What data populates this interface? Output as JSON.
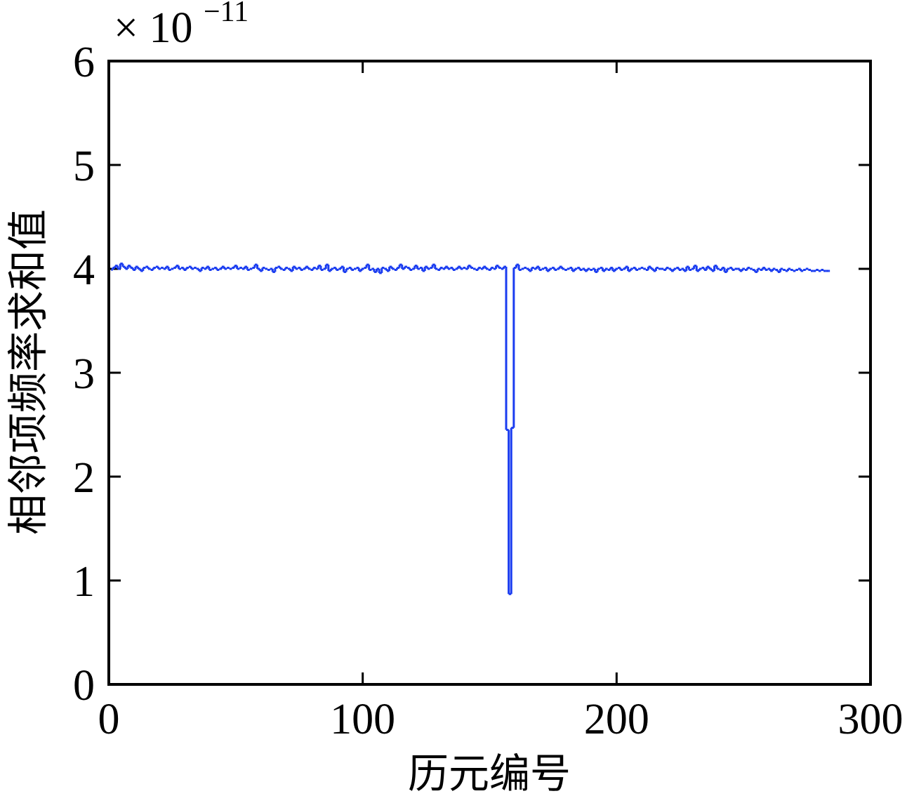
{
  "chart_data": {
    "type": "line",
    "step": true,
    "xlabel": "历元编号",
    "ylabel": "相邻项频率求和值",
    "y_multiplier": {
      "base": "× 10",
      "exponent": "−11"
    },
    "xlim": [
      0,
      300
    ],
    "xticks": [
      0,
      100,
      200,
      300
    ],
    "ylim": [
      0,
      6
    ],
    "yticks": [
      0,
      1,
      2,
      3,
      4,
      5,
      6
    ],
    "grid": false,
    "series": [
      {
        "color": "#1a3cf0",
        "x": [
          1,
          2,
          3,
          4,
          5,
          6,
          7,
          8,
          9,
          10,
          11,
          12,
          13,
          14,
          15,
          16,
          17,
          18,
          19,
          20,
          21,
          22,
          23,
          24,
          25,
          26,
          27,
          28,
          29,
          30,
          31,
          32,
          33,
          34,
          35,
          36,
          37,
          38,
          39,
          40,
          41,
          42,
          43,
          44,
          45,
          46,
          47,
          48,
          49,
          50,
          51,
          52,
          53,
          54,
          55,
          56,
          57,
          58,
          59,
          60,
          61,
          62,
          63,
          64,
          65,
          66,
          67,
          68,
          69,
          70,
          71,
          72,
          73,
          74,
          75,
          76,
          77,
          78,
          79,
          80,
          81,
          82,
          83,
          84,
          85,
          86,
          87,
          88,
          89,
          90,
          91,
          92,
          93,
          94,
          95,
          96,
          97,
          98,
          99,
          100,
          101,
          102,
          103,
          104,
          105,
          106,
          107,
          108,
          109,
          110,
          111,
          112,
          113,
          114,
          115,
          116,
          117,
          118,
          119,
          120,
          121,
          122,
          123,
          124,
          125,
          126,
          127,
          128,
          129,
          130,
          131,
          132,
          133,
          134,
          135,
          136,
          137,
          138,
          139,
          140,
          141,
          142,
          143,
          144,
          145,
          146,
          147,
          148,
          149,
          150,
          151,
          152,
          153,
          154,
          155,
          156,
          157,
          158,
          159,
          160,
          161,
          162,
          163,
          164,
          165,
          166,
          167,
          168,
          169,
          170,
          171,
          172,
          173,
          174,
          175,
          176,
          177,
          178,
          179,
          180,
          181,
          182,
          183,
          184,
          185,
          186,
          187,
          188,
          189,
          190,
          191,
          192,
          193,
          194,
          195,
          196,
          197,
          198,
          199,
          200,
          201,
          202,
          203,
          204,
          205,
          206,
          207,
          208,
          209,
          210,
          211,
          212,
          213,
          214,
          215,
          216,
          217,
          218,
          219,
          220,
          221,
          222,
          223,
          224,
          225,
          226,
          227,
          228,
          229,
          230,
          231,
          232,
          233,
          234,
          235,
          236,
          237,
          238,
          239,
          240,
          241,
          242,
          243,
          244,
          245,
          246,
          247,
          248,
          249,
          250,
          251,
          252,
          253,
          254,
          255,
          256,
          257,
          258,
          259,
          260,
          261,
          262,
          263,
          264,
          265,
          266,
          267,
          268,
          269,
          270,
          271,
          272,
          273,
          274,
          275,
          276,
          277,
          278,
          279,
          280,
          281,
          282,
          283,
          284
        ],
        "values": [
          3.99,
          4.01,
          4.03,
          4.0,
          4.05,
          4.02,
          4.0,
          4.03,
          4.01,
          3.99,
          4.02,
          4.0,
          3.98,
          4.01,
          4.02,
          4.0,
          3.99,
          4.01,
          4.02,
          4.0,
          4.01,
          4.0,
          4.02,
          3.99,
          4.0,
          4.01,
          4.03,
          4.0,
          4.01,
          3.99,
          4.01,
          4.02,
          4.0,
          4.01,
          4.0,
          3.98,
          4.01,
          4.0,
          4.02,
          3.99,
          4.0,
          4.01,
          3.99,
          4.0,
          4.02,
          4.0,
          4.01,
          4.0,
          4.01,
          4.03,
          4.0,
          4.01,
          4.0,
          4.02,
          3.99,
          4.0,
          4.01,
          4.04,
          4.0,
          3.98,
          4.01,
          4.0,
          3.99,
          4.0,
          3.97,
          4.01,
          4.02,
          4.0,
          3.99,
          4.01,
          4.0,
          3.98,
          4.02,
          4.0,
          4.01,
          3.99,
          4.0,
          4.02,
          4.0,
          3.99,
          4.01,
          4.0,
          4.03,
          3.99,
          4.0,
          4.04,
          3.98,
          4.0,
          4.01,
          3.99,
          4.0,
          4.02,
          3.97,
          4.0,
          4.01,
          3.99,
          4.0,
          4.01,
          3.98,
          4.0,
          4.01,
          4.04,
          3.99,
          4.0,
          3.97,
          4.0,
          3.96,
          4.01,
          4.0,
          3.98,
          4.02,
          4.0,
          3.99,
          4.01,
          4.04,
          4.0,
          4.02,
          4.01,
          3.99,
          4.0,
          4.03,
          4.0,
          4.01,
          3.98,
          4.02,
          4.0,
          4.01,
          4.04,
          4.0,
          3.99,
          4.01,
          4.0,
          4.02,
          4.0,
          4.01,
          3.99,
          4.0,
          4.02,
          4.0,
          4.01,
          4.0,
          4.03,
          4.01,
          4.0,
          3.99,
          4.01,
          4.0,
          4.02,
          4.0,
          3.99,
          4.01,
          4.0,
          4.03,
          4.01,
          4.0,
          4.02,
          2.45,
          0.87,
          2.47,
          4.01,
          4.04,
          3.99,
          4.0,
          4.01,
          4.0,
          3.98,
          4.01,
          4.0,
          4.02,
          3.99,
          4.0,
          4.01,
          3.98,
          4.0,
          4.01,
          3.99,
          4.0,
          4.02,
          4.0,
          3.99,
          4.0,
          4.01,
          3.98,
          4.0,
          4.01,
          3.99,
          4.0,
          3.98,
          4.0,
          3.99,
          4.0,
          3.97,
          4.0,
          4.01,
          3.98,
          4.0,
          3.99,
          4.01,
          3.98,
          4.0,
          4.01,
          3.99,
          4.0,
          4.02,
          3.98,
          4.0,
          4.01,
          3.99,
          4.0,
          4.01,
          4.0,
          3.99,
          4.02,
          4.0,
          3.98,
          4.01,
          4.0,
          4.0,
          3.99,
          4.01,
          4.0,
          3.98,
          4.0,
          4.01,
          3.99,
          4.0,
          3.98,
          4.02,
          3.99,
          4.0,
          4.03,
          3.98,
          4.0,
          4.01,
          3.99,
          4.02,
          4.0,
          3.98,
          4.03,
          4.0,
          3.99,
          4.01,
          3.97,
          4.0,
          4.01,
          3.99,
          4.0,
          4.0,
          3.98,
          4.0,
          3.99,
          4.01,
          4.0,
          3.99,
          3.97,
          4.0,
          3.99,
          4.01,
          3.99,
          4.0,
          3.98,
          4.0,
          3.99,
          3.97,
          4.0,
          3.99,
          3.98,
          4.0,
          3.99,
          3.98,
          3.99,
          4.0,
          3.98,
          3.99,
          4.0,
          3.99,
          3.98,
          3.98,
          3.99,
          3.98,
          3.99,
          3.98,
          3.98,
          3.98
        ]
      }
    ]
  }
}
